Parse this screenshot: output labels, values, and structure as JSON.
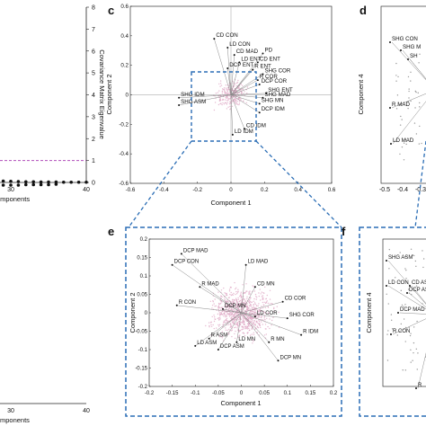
{
  "panels": {
    "c": "c",
    "d": "d",
    "e": "e",
    "f": "f"
  },
  "chart_data": [
    {
      "id": "eigen_top",
      "type": "scatter",
      "title": "",
      "xlabel": "omponents",
      "ylabel": "Covariance Matrix Eigenvalue",
      "xlim": [
        0,
        40
      ],
      "ylim": [
        0,
        8
      ],
      "xticks": [
        "30",
        "40"
      ],
      "yticks": [
        "0",
        "1",
        "2",
        "3",
        "4",
        "5",
        "6",
        "7",
        "8"
      ],
      "threshold_line": {
        "y": 1,
        "color": "#b04fb9"
      },
      "series": [
        {
          "x": [
            3,
            4,
            5,
            6,
            7,
            8,
            9,
            10,
            11,
            12,
            13,
            14,
            15,
            16,
            17,
            18,
            19,
            20,
            21,
            22,
            23,
            24,
            25,
            26,
            27,
            28,
            29,
            30,
            31,
            32,
            33,
            34,
            35,
            36,
            37,
            38,
            39,
            40
          ],
          "y": [
            0.5,
            0.45,
            0.4,
            0.38,
            0.35,
            0.32,
            0.3,
            0.28,
            0.26,
            0.25,
            0.23,
            0.22,
            0.2,
            0.19,
            0.18,
            0.17,
            0.16,
            0.15,
            0.14,
            0.13,
            0.12,
            0.11,
            0.1,
            0.09,
            0.08,
            0.07,
            0.06,
            0.05,
            0.04,
            0.03,
            0.03,
            0.02,
            0.02,
            0.02,
            0.01,
            0.01,
            0.01,
            0.01
          ]
        }
      ]
    },
    {
      "id": "cumulative_bottom",
      "type": "scatter",
      "title": "",
      "xlabel": "mponents",
      "ylabel": "",
      "xlim": [
        0,
        40
      ],
      "xticks": [
        "0",
        "30",
        "40"
      ],
      "series": [
        {
          "x": [
            2,
            3,
            4,
            5,
            6,
            7,
            8,
            9,
            10,
            11,
            12,
            13,
            14,
            15,
            16,
            17,
            18,
            19,
            20,
            21,
            22,
            23,
            24,
            25,
            26,
            27,
            28,
            29,
            30,
            31,
            32,
            33,
            34,
            35,
            36
          ],
          "y": [
            0.94,
            0.95,
            0.955,
            0.96,
            0.965,
            0.97,
            0.972,
            0.975,
            0.977,
            0.979,
            0.981,
            0.983,
            0.985,
            0.987,
            0.988,
            0.989,
            0.99,
            0.991,
            0.992,
            0.993,
            0.994,
            0.995,
            0.995,
            0.996,
            0.996,
            0.997,
            0.997,
            0.998,
            0.998,
            0.998,
            0.999,
            0.999,
            0.999,
            0.999,
            1.0
          ]
        }
      ]
    },
    {
      "id": "biplot_c",
      "type": "scatter",
      "title": "",
      "xlabel": "Component 1",
      "ylabel": "Component 2",
      "xlim": [
        -0.6,
        0.6
      ],
      "ylim": [
        -0.6,
        0.6
      ],
      "xticks": [
        "-0.6",
        "-0.4",
        "-0.2",
        "0",
        "0.2",
        "0.4",
        "0.6"
      ],
      "yticks": [
        "-0.6",
        "-0.4",
        "-0.2",
        "0",
        "0.2",
        "0.4",
        "0.6"
      ],
      "vectors": [
        {
          "label": "CD CON",
          "x": -0.1,
          "y": 0.38
        },
        {
          "label": "LD CON",
          "x": -0.02,
          "y": 0.32
        },
        {
          "label": "CD MAD",
          "x": 0.02,
          "y": 0.27
        },
        {
          "label": "LD ENT",
          "x": 0.05,
          "y": 0.22
        },
        {
          "label": "PD",
          "x": 0.19,
          "y": 0.28
        },
        {
          "label": "CD ENT",
          "x": 0.16,
          "y": 0.22
        },
        {
          "label": "DCP ENT",
          "x": -0.02,
          "y": 0.18
        },
        {
          "label": "R ENT",
          "x": 0.13,
          "y": 0.17
        },
        {
          "label": "SHG COR",
          "x": 0.19,
          "y": 0.14
        },
        {
          "label": "R COR",
          "x": 0.16,
          "y": 0.1
        },
        {
          "label": "DCP COR",
          "x": 0.17,
          "y": 0.07
        },
        {
          "label": "SHG ENT",
          "x": 0.21,
          "y": 0.01
        },
        {
          "label": "SHG MAD",
          "x": 0.19,
          "y": -0.02
        },
        {
          "label": "SHG MN",
          "x": 0.17,
          "y": -0.06
        },
        {
          "label": "SHG IDM",
          "x": -0.31,
          "y": -0.02
        },
        {
          "label": "SHG ASM",
          "x": -0.31,
          "y": -0.07
        },
        {
          "label": "DCP IDM",
          "x": 0.17,
          "y": -0.12
        },
        {
          "label": "CD IDM",
          "x": 0.08,
          "y": -0.23
        },
        {
          "label": "LD IDM",
          "x": 0.01,
          "y": -0.27
        }
      ]
    },
    {
      "id": "biplot_d",
      "type": "scatter",
      "title": "",
      "xlabel": "",
      "ylabel": "Component 4",
      "xticks": [
        "-0.5",
        "-0.4",
        "-0.3"
      ],
      "vectors": [
        {
          "label": "SHG CON"
        },
        {
          "label": "SHG M"
        },
        {
          "label": "SH"
        },
        {
          "label": "R MAD"
        },
        {
          "label": "LD MAD"
        }
      ]
    },
    {
      "id": "biplot_e",
      "type": "scatter",
      "title": "",
      "xlabel": "Component 1",
      "ylabel": "Component 2",
      "xlim": [
        -0.2,
        0.2
      ],
      "ylim": [
        -0.2,
        0.2
      ],
      "xticks": [
        "-0.2",
        "-0.15",
        "-0.1",
        "-0.05",
        "0",
        "0.05",
        "0.1",
        "0.15",
        "0.2"
      ],
      "yticks": [
        "-0.2",
        "-0.15",
        "-0.1",
        "-0.05",
        "0",
        "0.05",
        "0.1",
        "0.15",
        "0.2"
      ],
      "vectors": [
        {
          "label": "DCP MAD",
          "x": -0.13,
          "y": 0.16
        },
        {
          "label": "DCP CON",
          "x": -0.15,
          "y": 0.13
        },
        {
          "label": "LD MAD",
          "x": 0.01,
          "y": 0.13
        },
        {
          "label": "R MAD",
          "x": -0.09,
          "y": 0.07
        },
        {
          "label": "CD MN",
          "x": 0.03,
          "y": 0.07
        },
        {
          "label": "R CON",
          "x": -0.14,
          "y": 0.02
        },
        {
          "label": "CD COR",
          "x": 0.09,
          "y": 0.03
        },
        {
          "label": "DCP MN",
          "x": -0.04,
          "y": 0.01
        },
        {
          "label": "LD COR",
          "x": 0.03,
          "y": -0.01
        },
        {
          "label": "SHG COR",
          "x": 0.1,
          "y": -0.015
        },
        {
          "label": "R IDM",
          "x": 0.13,
          "y": -0.06
        },
        {
          "label": "R ASM",
          "x": -0.07,
          "y": -0.07
        },
        {
          "label": "LD MN",
          "x": -0.01,
          "y": -0.08
        },
        {
          "label": "R MN",
          "x": 0.06,
          "y": -0.08
        },
        {
          "label": "LD ASM",
          "x": -0.1,
          "y": -0.09
        },
        {
          "label": "DCP ASM",
          "x": -0.05,
          "y": -0.1
        },
        {
          "label": "DCP MN",
          "x": 0.08,
          "y": -0.13
        }
      ]
    },
    {
      "id": "biplot_f",
      "type": "scatter",
      "title": "",
      "xlabel": "",
      "ylabel": "Component 4",
      "vectors": [
        {
          "label": "SHG ASM"
        },
        {
          "label": "LD CON"
        },
        {
          "label": "CD AS"
        },
        {
          "label": "DCP AS"
        },
        {
          "label": "DCP MAD"
        },
        {
          "label": "R CON"
        },
        {
          "label": "R"
        }
      ]
    }
  ]
}
